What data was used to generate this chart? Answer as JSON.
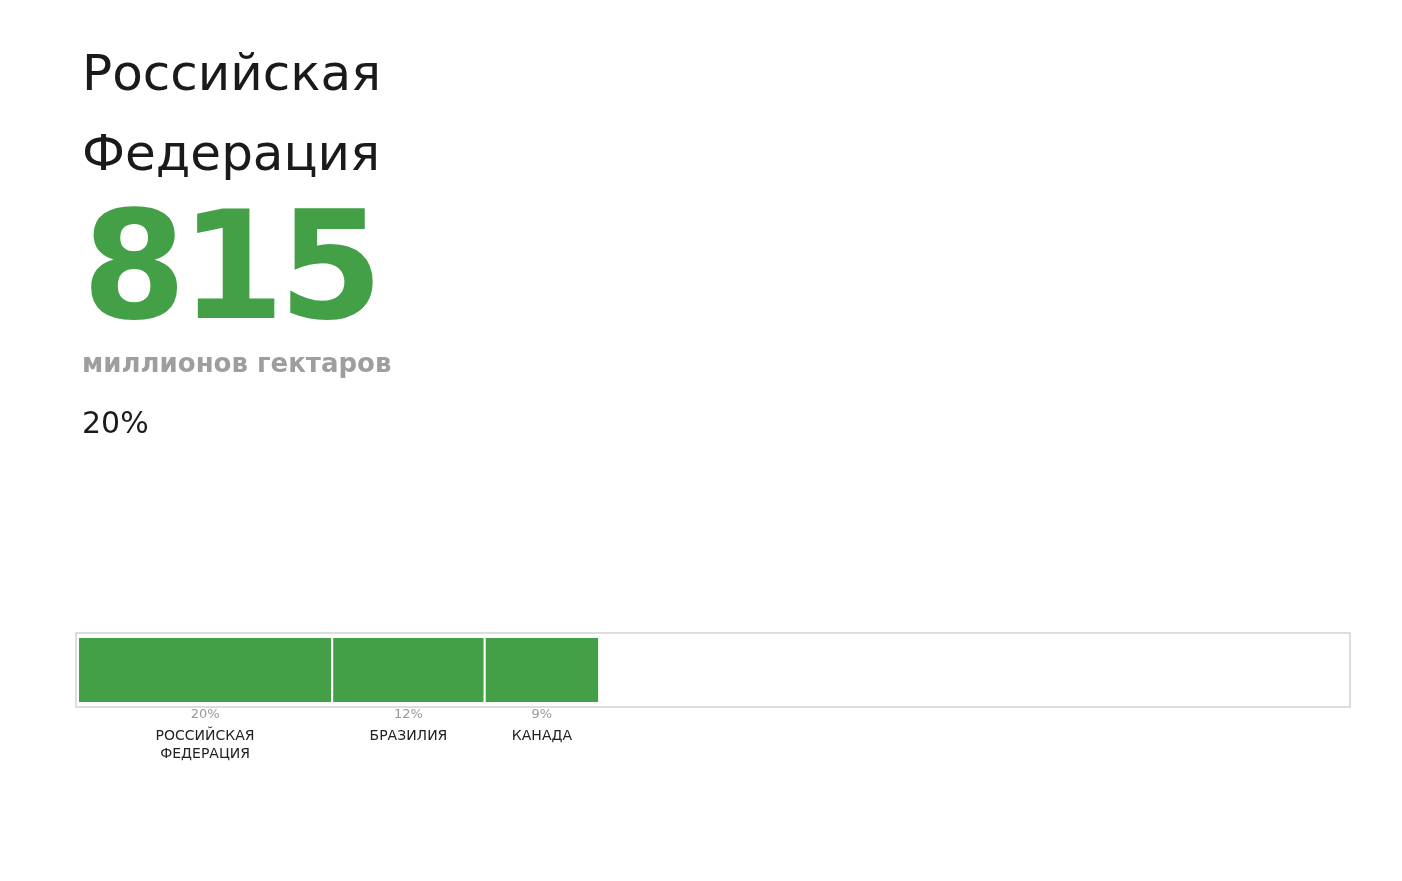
{
  "chart_data": {
    "type": "bar",
    "orientation": "horizontal",
    "stacked": true,
    "title": "Российская Федерация",
    "annotations": [
      "815",
      "миллионов гектаров",
      "20%"
    ],
    "categories": [
      null
    ],
    "xlim": [
      0,
      100
    ],
    "series": [
      {
        "name": "РОССИЙСКАЯ ФЕДЕРАЦИЯ",
        "color": "#43a047",
        "values": [
          20
        ],
        "value_labels": [
          "20%"
        ]
      },
      {
        "name": "БРАЗИЛИЯ",
        "color": "#43a047",
        "values": [
          12
        ],
        "value_labels": [
          "12%"
        ]
      },
      {
        "name": "КАНАДА",
        "color": "#43a047",
        "values": [
          9
        ],
        "value_labels": [
          "9%"
        ]
      }
    ]
  }
}
